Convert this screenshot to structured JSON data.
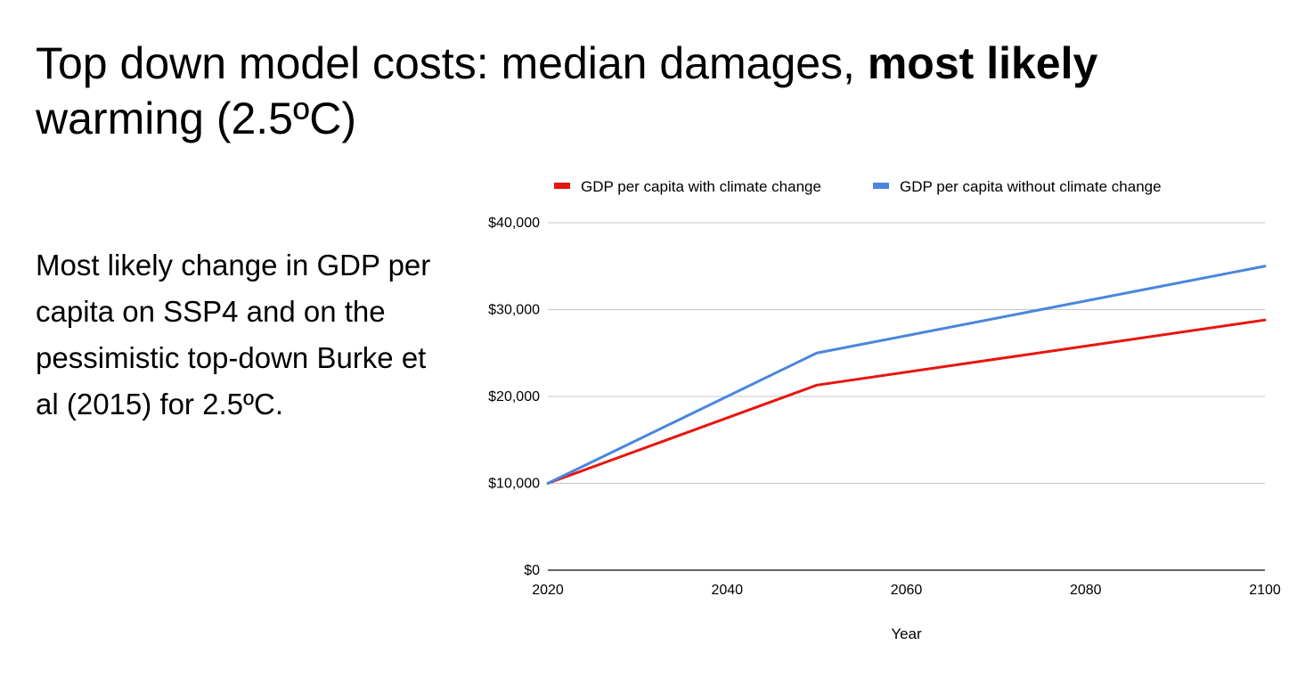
{
  "slide": {
    "title_part1": "Top down model costs: median damages, ",
    "title_bold": "most likely",
    "title_part2": " warming (2.5ºC)",
    "body": "Most likely change in GDP per capita on SSP4 and on the pessimistic top-down Burke et al (2015) for 2.5ºC."
  },
  "chart_data": {
    "type": "line",
    "title": "",
    "xlabel": "Year",
    "ylabel": "",
    "x": [
      2020,
      2050,
      2100
    ],
    "xlim": [
      2020,
      2100
    ],
    "ylim": [
      0,
      40000
    ],
    "x_ticks": [
      2020,
      2040,
      2060,
      2080,
      2100
    ],
    "y_ticks": [
      0,
      10000,
      20000,
      30000,
      40000
    ],
    "x_tick_labels": [
      "2020",
      "2040",
      "2060",
      "2080",
      "2100"
    ],
    "y_tick_labels": [
      "$0",
      "$10,000",
      "$20,000",
      "$30,000",
      "$40,000"
    ],
    "grid": true,
    "legend_position": "top",
    "series": [
      {
        "name": "GDP per capita with climate change",
        "color": "#e8150f",
        "values": [
          10000,
          21300,
          28800
        ]
      },
      {
        "name": "GDP per capita without climate change",
        "color": "#4a86dc",
        "values": [
          10000,
          25000,
          35000
        ]
      }
    ]
  }
}
